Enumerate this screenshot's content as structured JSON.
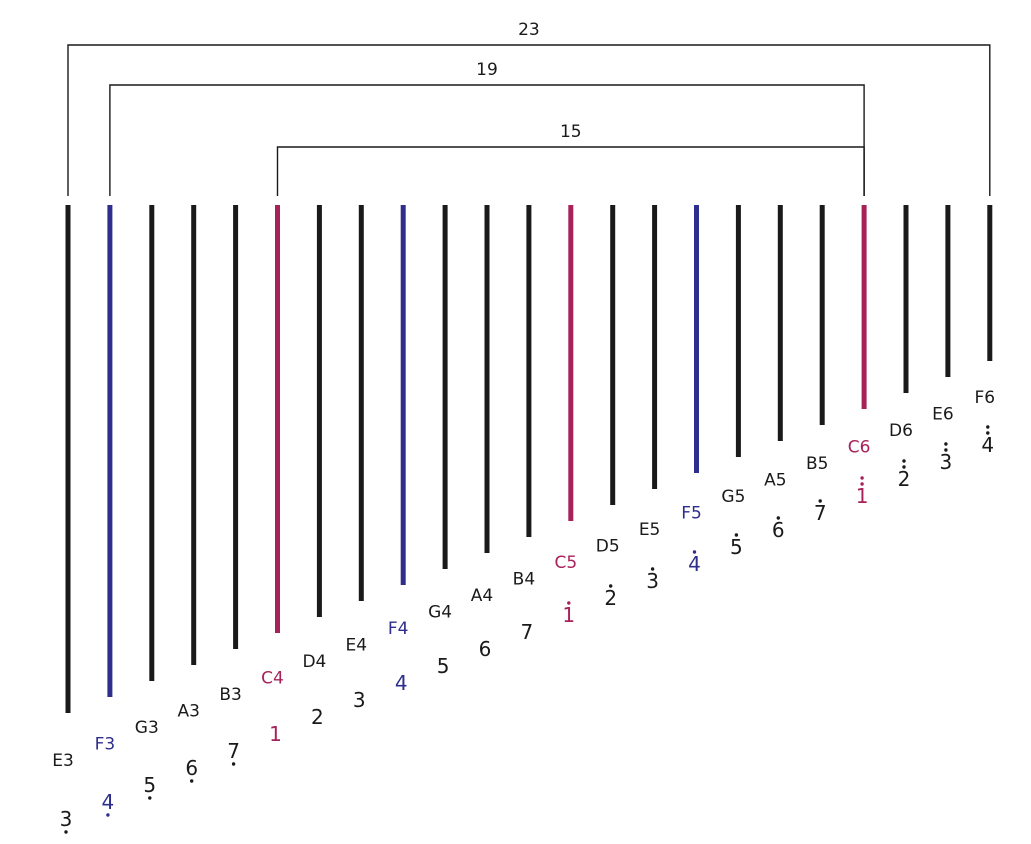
{
  "colors": {
    "natural": "#1a1a1a",
    "fa": "#2e2e8c",
    "do": "#a8225a"
  },
  "brackets": [
    {
      "label": "23",
      "from": "E3",
      "to": "F6"
    },
    {
      "label": "19",
      "from": "F3",
      "to": "C6"
    },
    {
      "label": "15",
      "from": "C4",
      "to": "C6"
    }
  ],
  "tines": [
    {
      "note": "E3",
      "number": "3",
      "octave": -1,
      "kind": "natural"
    },
    {
      "note": "F3",
      "number": "4",
      "octave": -1,
      "kind": "fa"
    },
    {
      "note": "G3",
      "number": "5",
      "octave": -1,
      "kind": "natural"
    },
    {
      "note": "A3",
      "number": "6",
      "octave": -1,
      "kind": "natural"
    },
    {
      "note": "B3",
      "number": "7",
      "octave": -1,
      "kind": "natural"
    },
    {
      "note": "C4",
      "number": "1",
      "octave": 0,
      "kind": "do"
    },
    {
      "note": "D4",
      "number": "2",
      "octave": 0,
      "kind": "natural"
    },
    {
      "note": "E4",
      "number": "3",
      "octave": 0,
      "kind": "natural"
    },
    {
      "note": "F4",
      "number": "4",
      "octave": 0,
      "kind": "fa"
    },
    {
      "note": "G4",
      "number": "5",
      "octave": 0,
      "kind": "natural"
    },
    {
      "note": "A4",
      "number": "6",
      "octave": 0,
      "kind": "natural"
    },
    {
      "note": "B4",
      "number": "7",
      "octave": 0,
      "kind": "natural"
    },
    {
      "note": "C5",
      "number": "1",
      "octave": 1,
      "kind": "do"
    },
    {
      "note": "D5",
      "number": "2",
      "octave": 1,
      "kind": "natural"
    },
    {
      "note": "E5",
      "number": "3",
      "octave": 1,
      "kind": "natural"
    },
    {
      "note": "F5",
      "number": "4",
      "octave": 1,
      "kind": "fa"
    },
    {
      "note": "G5",
      "number": "5",
      "octave": 1,
      "kind": "natural"
    },
    {
      "note": "A5",
      "number": "6",
      "octave": 1,
      "kind": "natural"
    },
    {
      "note": "B5",
      "number": "7",
      "octave": 1,
      "kind": "natural"
    },
    {
      "note": "C6",
      "number": "1",
      "octave": 2,
      "kind": "do"
    },
    {
      "note": "D6",
      "number": "2",
      "octave": 2,
      "kind": "natural"
    },
    {
      "note": "E6",
      "number": "3",
      "octave": 2,
      "kind": "natural"
    },
    {
      "note": "F6",
      "number": "4",
      "octave": 2,
      "kind": "natural"
    }
  ]
}
